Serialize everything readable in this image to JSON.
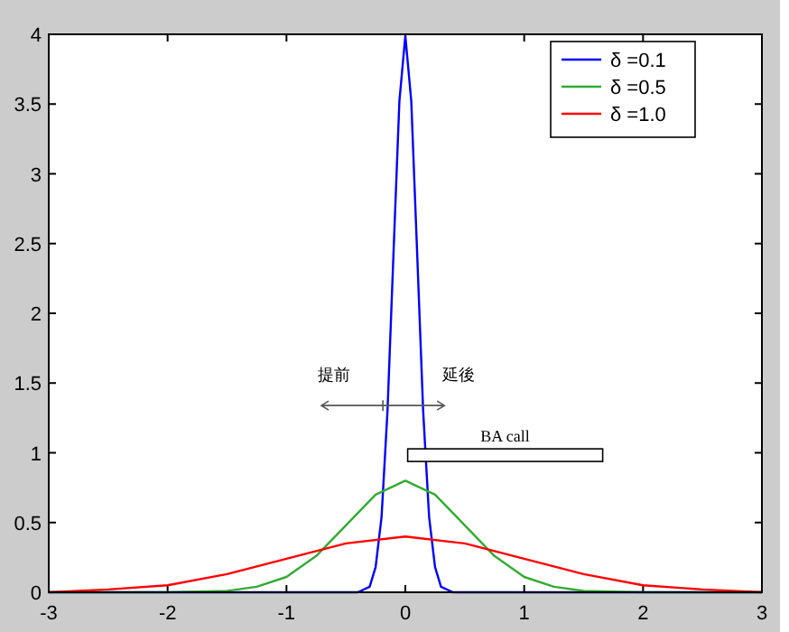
{
  "chart_data": {
    "type": "line",
    "xlim": [
      -3,
      3
    ],
    "ylim": [
      0,
      4
    ],
    "xticks": [
      -3,
      -2,
      -1,
      0,
      1,
      2,
      3
    ],
    "yticks": [
      0,
      0.5,
      1,
      1.5,
      2,
      2.5,
      3,
      3.5,
      4
    ],
    "legend": "top right",
    "grid": false,
    "marker": "none",
    "line_style": "solid",
    "series": [
      {
        "name": "δ =0.1",
        "color": "#0000ff",
        "x": [
          -3,
          -0.4,
          -0.3,
          -0.25,
          -0.2,
          -0.15,
          -0.1,
          -0.05,
          0,
          0.05,
          0.1,
          0.15,
          0.2,
          0.25,
          0.3,
          0.4,
          3
        ],
        "values": [
          0,
          0,
          0.04,
          0.18,
          0.54,
          1.3,
          2.42,
          3.52,
          3.99,
          3.52,
          2.42,
          1.3,
          0.54,
          0.18,
          0.04,
          0,
          0
        ]
      },
      {
        "name": "δ =0.5",
        "color": "#33aa33",
        "x": [
          -3,
          -2,
          -1.5,
          -1.25,
          -1,
          -0.75,
          -0.5,
          -0.25,
          0,
          0.25,
          0.5,
          0.75,
          1,
          1.25,
          1.5,
          2,
          3
        ],
        "values": [
          0,
          0,
          0.01,
          0.04,
          0.11,
          0.26,
          0.48,
          0.7,
          0.8,
          0.7,
          0.48,
          0.26,
          0.11,
          0.04,
          0.01,
          0,
          0
        ]
      },
      {
        "name": "δ =1.0",
        "color": "#ff0000",
        "x": [
          -3,
          -2.5,
          -2,
          -1.5,
          -1,
          -0.5,
          0,
          0.5,
          1,
          1.5,
          2,
          2.5,
          3
        ],
        "values": [
          0,
          0.02,
          0.05,
          0.13,
          0.24,
          0.35,
          0.4,
          0.35,
          0.24,
          0.13,
          0.05,
          0.02,
          0
        ]
      }
    ],
    "annotations": [
      "提前",
      "延後",
      "BA call"
    ]
  }
}
